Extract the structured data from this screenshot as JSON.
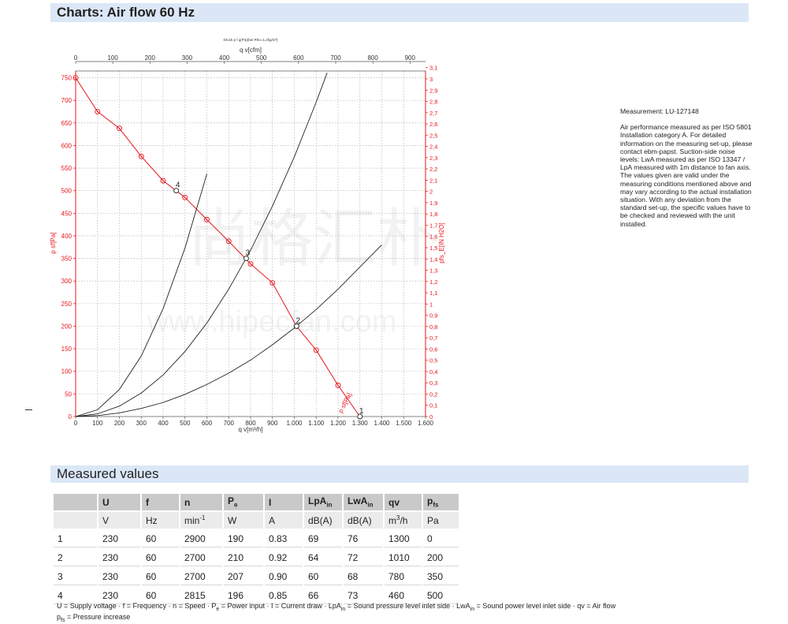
{
  "header": {
    "title": "Charts: Air flow 60 Hz"
  },
  "chart_data": {
    "type": "line",
    "small_caption": "Druck p f q(Pa)(bei Rho=1,2kg/m³)",
    "x_bottom": {
      "label": "q v[m³/h]",
      "ticks": [
        0,
        100,
        200,
        300,
        400,
        500,
        600,
        700,
        800,
        900,
        1000,
        1100,
        1200,
        1300,
        1400,
        1500,
        1600
      ],
      "tick_labels": [
        "0",
        "100",
        "200",
        "300",
        "400",
        "500",
        "600",
        "700",
        "800",
        "900",
        "1.000",
        "1.100",
        "1.200",
        "1.300",
        "1.400",
        "1.500",
        "1.600"
      ],
      "range": [
        0,
        1600
      ]
    },
    "x_top": {
      "label": "q v[cfm]",
      "ticks": [
        0,
        100,
        200,
        300,
        400,
        500,
        600,
        700,
        800,
        900
      ],
      "tick_labels": [
        "0",
        "100",
        "200",
        "300",
        "400",
        "500",
        "600",
        "700",
        "800",
        "900"
      ],
      "range": [
        0,
        941.8
      ]
    },
    "y_left": {
      "label": "p sf[Pa]",
      "ticks": [
        0,
        50,
        100,
        150,
        200,
        250,
        300,
        350,
        400,
        450,
        500,
        550,
        600,
        650,
        700,
        750
      ],
      "tick_labels": [
        "0",
        "50",
        "100",
        "150",
        "200",
        "250",
        "300",
        "350",
        "400",
        "450",
        "500",
        "550",
        "600",
        "650",
        "700",
        "750"
      ],
      "range": [
        0,
        765
      ]
    },
    "y_right": {
      "label": "pfs_E[IN H2O]",
      "range": [
        0,
        3.07
      ],
      "tick_labels": [
        "0",
        "0,1",
        "0,2",
        "0,3",
        "0,4",
        "0,5",
        "0,6",
        "0,7",
        "0,8",
        "0,9",
        "1",
        "1,1",
        "1,2",
        "1,3",
        "1,4",
        "1,5",
        "1,6",
        "1,7",
        "1,8",
        "1,9",
        "2",
        "2,1",
        "2,2",
        "2,3",
        "2,4",
        "2,5",
        "2,6",
        "2,7",
        "2,8",
        "2,9",
        "3",
        "3,1"
      ]
    },
    "grid": true,
    "series": [
      {
        "name": "p sf",
        "color": "#e8141c",
        "x": [
          0,
          100,
          200,
          300,
          400,
          500,
          600,
          700,
          800,
          900,
          1010,
          1100,
          1200,
          1300
        ],
        "y": [
          750,
          675,
          638,
          576,
          522,
          485,
          436,
          388,
          338,
          296,
          200,
          147,
          69,
          0
        ],
        "markers": [
          0,
          100,
          200,
          300,
          400,
          500,
          600,
          700,
          800,
          900,
          1010,
          1100,
          1200
        ]
      },
      {
        "color": "#222222",
        "x": [
          0,
          100,
          200,
          300,
          400,
          500,
          600
        ],
        "y": [
          0,
          15,
          60,
          134,
          239,
          373,
          537
        ]
      },
      {
        "color": "#222222",
        "x": [
          0,
          100,
          200,
          300,
          400,
          500,
          600,
          700,
          800,
          900,
          1000,
          1100,
          1150
        ],
        "y": [
          0,
          6,
          23,
          52,
          92,
          144,
          207,
          282,
          368,
          466,
          575,
          696,
          761
        ]
      },
      {
        "color": "#222222",
        "x": [
          0,
          100,
          200,
          300,
          400,
          500,
          600,
          700,
          800,
          900,
          1000,
          1100,
          1200,
          1300,
          1400
        ],
        "y": [
          0,
          2,
          8,
          18,
          31,
          49,
          71,
          96,
          125,
          159,
          196,
          237,
          282,
          331,
          380
        ]
      }
    ],
    "operating_points": [
      {
        "label": "1",
        "x": 1300,
        "y": 0
      },
      {
        "label": "2",
        "x": 1010,
        "y": 200
      },
      {
        "label": "3",
        "x": 780,
        "y": 350
      },
      {
        "label": "4",
        "x": 460,
        "y": 500
      }
    ],
    "curve_label": "p sf[Pa]"
  },
  "notes": {
    "measurement": "Measurement: LU-127148",
    "text": "Air performance measured as per ISO 5801 Installation category A. For detailed information on the measuring set-up, please contact ebm-papst. Suction-side noise levels: LwA measured as per ISO 13347 / LpA measured with 1m distance to fan axis. The values given are valid under the measuring conditions mentioned above and may vary according to the actual installation situation. With any deviation from the standard set-up, the specific values have to be checked and reviewed with the unit installed."
  },
  "measured": {
    "title": "Measured values",
    "headers": [
      "",
      "U",
      "f",
      "n",
      "P",
      "I",
      "LpA",
      "LwA",
      "qv",
      "p"
    ],
    "header_subs": [
      "",
      "",
      "",
      "",
      "e",
      "",
      "in",
      "in",
      "",
      "fs"
    ],
    "units": [
      "",
      "V",
      "Hz",
      "min",
      "W",
      "A",
      "dB(A)",
      "dB(A)",
      "m",
      "Pa"
    ],
    "unit_sups": [
      "",
      "",
      "",
      "-1",
      "",
      "",
      "",
      "",
      "3",
      ""
    ],
    "unit_after": [
      "",
      "",
      "",
      "",
      "",
      "",
      "",
      "",
      "/h",
      ""
    ],
    "rows": [
      [
        "1",
        "230",
        "60",
        "2900",
        "190",
        "0.83",
        "69",
        "76",
        "1300",
        "0"
      ],
      [
        "2",
        "230",
        "60",
        "2700",
        "210",
        "0.92",
        "64",
        "72",
        "1010",
        "200"
      ],
      [
        "3",
        "230",
        "60",
        "2700",
        "207",
        "0.90",
        "60",
        "68",
        "780",
        "350"
      ],
      [
        "4",
        "230",
        "60",
        "2815",
        "196",
        "0.85",
        "66",
        "73",
        "460",
        "500"
      ]
    ]
  },
  "legend": {
    "line1_parts": [
      "U = Supply voltage · f = Frequency · n = Speed · P",
      "e",
      " = Power input · I = Current draw · LpA",
      "in",
      " = Sound pressure level inlet side · LwA",
      "in",
      " = Sound power level inlet side · qv = Air flow"
    ],
    "line2_parts": [
      "p",
      "fs",
      " = Pressure increase"
    ]
  },
  "watermark": {
    "line1": "尚格汇朴",
    "line2": "www.hipecfan.com"
  }
}
